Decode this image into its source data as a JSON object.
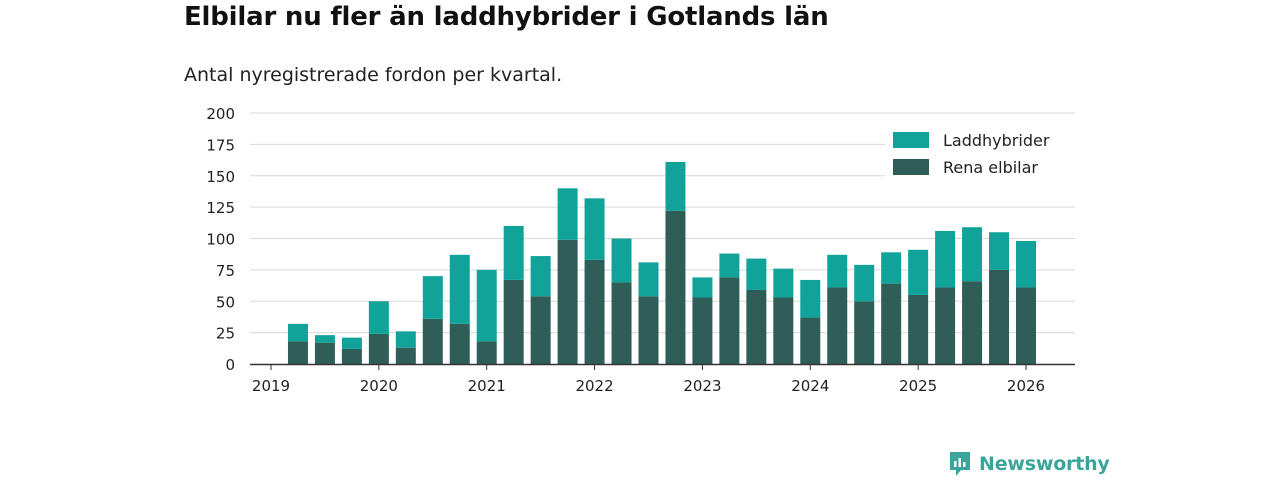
{
  "header": {
    "title": "Elbilar nu fler än laddhybrider i Gotlands län",
    "subtitle": "Antal nyregistrerade fordon per kvartal."
  },
  "brand": {
    "name": "Newsworthy",
    "icon": "newsworthy-logo-icon"
  },
  "chart_data": {
    "type": "bar",
    "stacked": true,
    "title": "Elbilar nu fler än laddhybrider i Gotlands län",
    "subtitle": "Antal nyregistrerade fordon per kvartal.",
    "xlabel": "",
    "ylabel": "",
    "ylim": [
      0,
      200
    ],
    "yticks": [
      0,
      25,
      50,
      75,
      100,
      125,
      150,
      175,
      200
    ],
    "xticks": [
      "2019",
      "2020",
      "2021",
      "2022",
      "2023",
      "2024",
      "2025",
      "2026"
    ],
    "grid": true,
    "legend_position": "top-right",
    "categories": [
      "2019 Q2",
      "2019 Q3",
      "2019 Q4",
      "2020 Q1",
      "2020 Q2",
      "2020 Q3",
      "2020 Q4",
      "2021 Q1",
      "2021 Q2",
      "2021 Q3",
      "2021 Q4",
      "2022 Q1",
      "2022 Q2",
      "2022 Q3",
      "2022 Q4",
      "2023 Q1",
      "2023 Q2",
      "2023 Q3",
      "2023 Q4",
      "2024 Q1",
      "2024 Q2",
      "2024 Q3",
      "2024 Q4",
      "2025 Q1",
      "2025 Q2",
      "2025 Q3",
      "2025 Q4",
      "2026 Q1"
    ],
    "series": [
      {
        "name": "Rena elbilar",
        "color": "#2f5e59",
        "values": [
          18,
          17,
          12,
          24,
          13,
          36,
          32,
          18,
          67,
          54,
          99,
          83,
          65,
          54,
          122,
          53,
          69,
          59,
          53,
          37,
          61,
          50,
          64,
          55,
          61,
          66,
          75,
          61
        ]
      },
      {
        "name": "Laddhybrider",
        "color": "#11a399",
        "values": [
          14,
          6,
          9,
          26,
          13,
          34,
          55,
          57,
          43,
          32,
          41,
          49,
          35,
          27,
          39,
          16,
          19,
          25,
          23,
          30,
          26,
          29,
          25,
          36,
          45,
          43,
          30,
          37
        ]
      }
    ],
    "legend": [
      "Laddhybrider",
      "Rena elbilar"
    ]
  }
}
